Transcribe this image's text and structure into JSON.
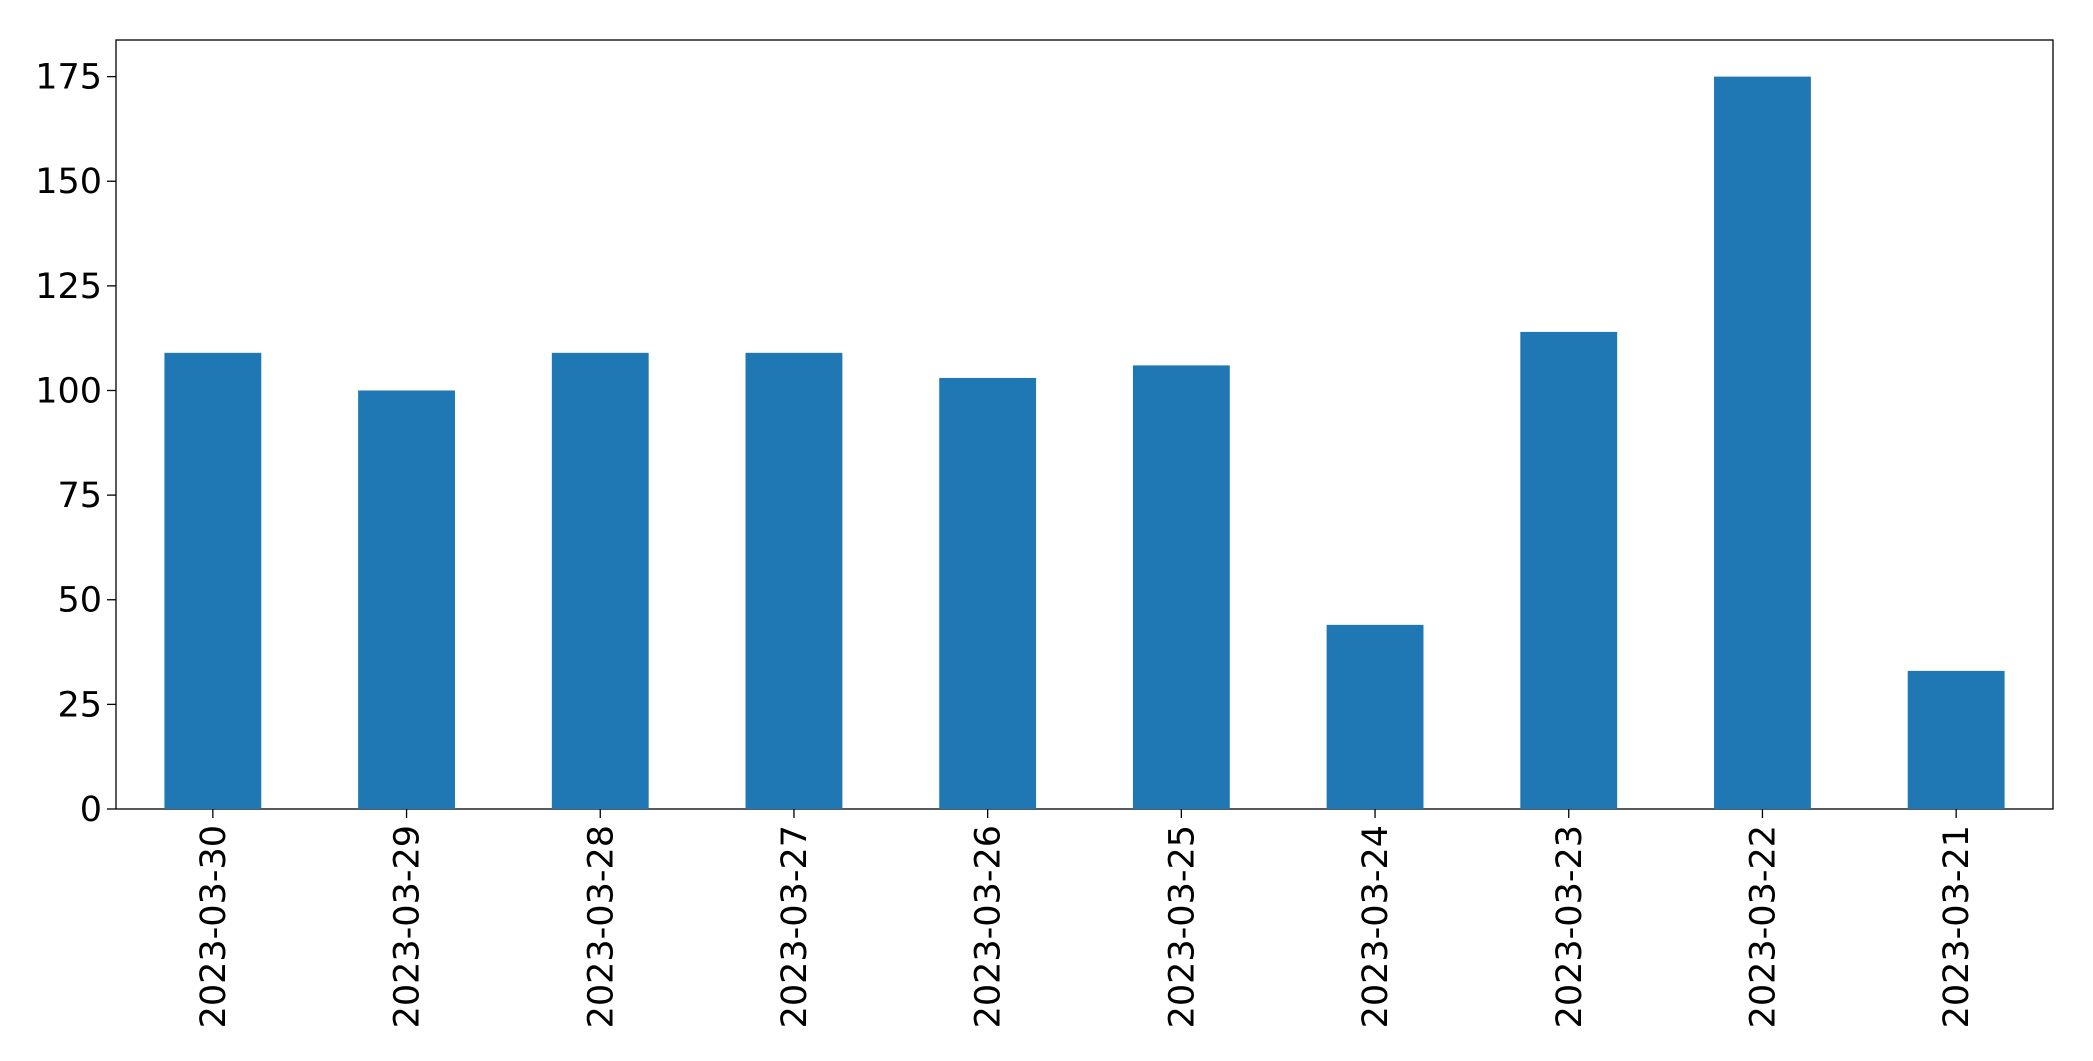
{
  "chart_data": {
    "type": "bar",
    "categories": [
      "2023-03-30",
      "2023-03-29",
      "2023-03-28",
      "2023-03-27",
      "2023-03-26",
      "2023-03-25",
      "2023-03-24",
      "2023-03-23",
      "2023-03-22",
      "2023-03-21"
    ],
    "values": [
      109,
      100,
      109,
      109,
      103,
      106,
      44,
      114,
      175,
      33
    ],
    "color": "#1f77b4",
    "ylim": [
      0,
      183.75
    ],
    "yticks": [
      0,
      25,
      50,
      75,
      100,
      125,
      150,
      175
    ],
    "grid": false
  }
}
